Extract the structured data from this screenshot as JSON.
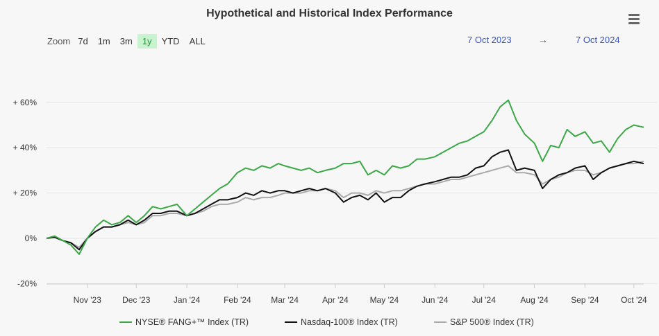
{
  "title": "Hypothetical and Historical Index Performance",
  "zoom": {
    "label": "Zoom",
    "buttons": [
      "7d",
      "1m",
      "3m",
      "1y",
      "YTD",
      "ALL"
    ],
    "active": "1y"
  },
  "range": {
    "from": "7 Oct 2023",
    "to": "7 Oct 2024",
    "arrow": "→"
  },
  "menu_icon": "hamburger-menu-icon",
  "colors": {
    "fang": "#3aa845",
    "nasdaq": "#111111",
    "sp500": "#aaaaaa",
    "grid": "#e6e6e6",
    "background": "#f7f7f7"
  },
  "chart_data": {
    "type": "line",
    "title": "Hypothetical and Historical Index Performance",
    "xlabel": "",
    "ylabel": "",
    "ylim": [
      -20,
      65
    ],
    "y_ticks": [
      60,
      40,
      20,
      0,
      -20
    ],
    "y_tick_labels": [
      "+ 60%",
      "+ 40%",
      "+ 20%",
      "0%",
      "-20%"
    ],
    "x_tick_labels": [
      "Nov '23",
      "Dec '23",
      "Jan '24",
      "Feb '24",
      "Mar '24",
      "Apr '24",
      "May '24",
      "Jun '24",
      "Jul '24",
      "Aug '24",
      "Sep '24",
      "Oct '24"
    ],
    "x_tick_dates": [
      "2023-11-01",
      "2023-12-01",
      "2024-01-01",
      "2024-02-01",
      "2024-03-01",
      "2024-04-01",
      "2024-05-01",
      "2024-06-01",
      "2024-07-01",
      "2024-08-01",
      "2024-09-01",
      "2024-10-01"
    ],
    "x": [
      "2023-10-07",
      "2023-10-12",
      "2023-10-17",
      "2023-10-22",
      "2023-10-27",
      "2023-11-01",
      "2023-11-06",
      "2023-11-11",
      "2023-11-16",
      "2023-11-21",
      "2023-11-26",
      "2023-12-01",
      "2023-12-06",
      "2023-12-11",
      "2023-12-16",
      "2023-12-21",
      "2023-12-26",
      "2024-01-01",
      "2024-01-06",
      "2024-01-11",
      "2024-01-16",
      "2024-01-21",
      "2024-01-26",
      "2024-02-01",
      "2024-02-06",
      "2024-02-11",
      "2024-02-16",
      "2024-02-21",
      "2024-02-26",
      "2024-03-01",
      "2024-03-06",
      "2024-03-11",
      "2024-03-16",
      "2024-03-21",
      "2024-03-26",
      "2024-04-01",
      "2024-04-06",
      "2024-04-11",
      "2024-04-16",
      "2024-04-21",
      "2024-04-26",
      "2024-05-01",
      "2024-05-06",
      "2024-05-11",
      "2024-05-16",
      "2024-05-21",
      "2024-05-26",
      "2024-06-01",
      "2024-06-06",
      "2024-06-11",
      "2024-06-16",
      "2024-06-21",
      "2024-06-26",
      "2024-07-01",
      "2024-07-06",
      "2024-07-11",
      "2024-07-16",
      "2024-07-21",
      "2024-07-26",
      "2024-08-01",
      "2024-08-06",
      "2024-08-11",
      "2024-08-16",
      "2024-08-21",
      "2024-08-26",
      "2024-09-01",
      "2024-09-06",
      "2024-09-11",
      "2024-09-16",
      "2024-09-21",
      "2024-09-26",
      "2024-10-01",
      "2024-10-07"
    ],
    "series": [
      {
        "name": "NYSE® FANG+™ Index (TR)",
        "color": "#3aa845",
        "values": [
          0,
          1,
          -1,
          -3,
          -7,
          0,
          5,
          8,
          6,
          7,
          10,
          7,
          10,
          14,
          13,
          14,
          15,
          10,
          13,
          16,
          19,
          22,
          24,
          29,
          31,
          30,
          32,
          31,
          33,
          32,
          31,
          30,
          31,
          29,
          30,
          31,
          33,
          33,
          34,
          28,
          30,
          28,
          32,
          31,
          32,
          35,
          35,
          36,
          38,
          40,
          42,
          43,
          45,
          47,
          52,
          58,
          61,
          52,
          46,
          42,
          34,
          41,
          40,
          48,
          45,
          47,
          42,
          43,
          38,
          44,
          48,
          50,
          49
        ]
      },
      {
        "name": "Nasdaq-100® Index (TR)",
        "color": "#111111",
        "values": [
          0,
          0.5,
          -1,
          -2,
          -5,
          0,
          3,
          5,
          5,
          6,
          8,
          6,
          8,
          11,
          11,
          12,
          12,
          10,
          11,
          13,
          15,
          17,
          17,
          18,
          20,
          19,
          21,
          20,
          21,
          21,
          20,
          21,
          22,
          21,
          22,
          20,
          16,
          18,
          19,
          17,
          20,
          16,
          18,
          18,
          21,
          23,
          24,
          25,
          26,
          27,
          27,
          28,
          31,
          32,
          36,
          38,
          39,
          30,
          31,
          30,
          22,
          26,
          28,
          29,
          31,
          32,
          26,
          29,
          31,
          32,
          33,
          34,
          33
        ]
      },
      {
        "name": "S&P 500® Index (TR)",
        "color": "#aaaaaa",
        "values": [
          0,
          0.5,
          -1,
          -2,
          -4,
          0,
          3,
          5,
          5,
          6,
          7,
          6,
          7,
          10,
          10,
          11,
          11,
          10,
          11,
          12,
          14,
          15,
          15,
          16,
          18,
          17,
          18,
          18,
          19,
          20,
          20,
          20,
          21,
          21,
          22,
          21,
          18,
          20,
          20,
          19,
          21,
          20,
          21,
          21,
          22,
          23,
          24,
          24,
          25,
          26,
          26,
          27,
          28,
          29,
          30,
          31,
          32,
          29,
          29,
          28,
          24,
          26,
          27,
          29,
          30,
          30,
          28,
          29,
          31,
          32,
          33,
          33,
          34
        ]
      }
    ],
    "grid": true,
    "legend_position": "bottom"
  }
}
